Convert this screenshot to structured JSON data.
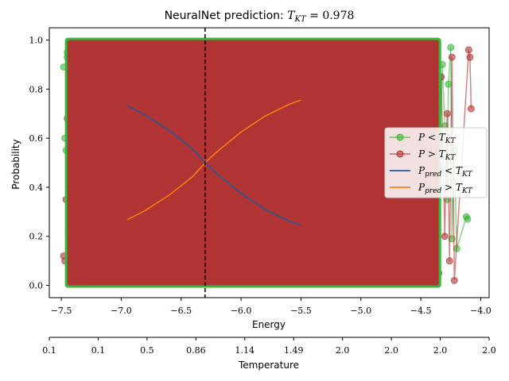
{
  "chart_data": {
    "type": "line",
    "title": "NeuralNet prediction: T_KT = 0.978",
    "title_prefix": "NeuralNet prediction: ",
    "title_symbol": "T",
    "title_sub": "KT",
    "title_value": " = 0.978",
    "xlabel": "Energy",
    "ylabel": "Probability",
    "xlim": [
      -7.6,
      -3.93
    ],
    "ylim": [
      -0.05,
      1.05
    ],
    "x_ticks": [
      -7.5,
      -7.0,
      -6.5,
      -6.0,
      -5.5,
      -5.0,
      -4.5,
      -4.0
    ],
    "x_tick_labels": [
      "−7.5",
      "−7.0",
      "−6.5",
      "−6.0",
      "−5.5",
      "−5.0",
      "−4.5",
      "−4.0"
    ],
    "y_ticks": [
      0.0,
      0.2,
      0.4,
      0.6,
      0.8,
      1.0
    ],
    "y_tick_labels": [
      "0.0",
      "0.2",
      "0.4",
      "0.6",
      "0.8",
      "1.0"
    ],
    "critical_energy": -6.3,
    "dense_band": {
      "x": [
        -7.45,
        -4.35
      ],
      "y": [
        0.0,
        1.0
      ]
    },
    "series": [
      {
        "name": "P < T_KT",
        "kind": "scatter-line",
        "color": "#3cb53c",
        "x": [
          -7.48,
          -7.46,
          -7.45,
          -7.44,
          -7.43,
          -7.47,
          -7.45,
          -4.52,
          -4.5,
          -4.48,
          -4.46,
          -4.44,
          -4.42,
          -4.4,
          -4.36,
          -4.34,
          -4.32,
          -4.3,
          -4.28,
          -4.27,
          -4.25,
          -4.24,
          -4.22,
          -4.2,
          -4.12,
          -4.11
        ],
        "y": [
          0.89,
          0.55,
          0.93,
          0.32,
          0.78,
          0.6,
          0.95,
          0.05,
          0.25,
          0.15,
          0.72,
          0.45,
          0.62,
          0.27,
          0.4,
          0.58,
          0.9,
          0.65,
          0.35,
          0.82,
          0.97,
          0.19,
          0.55,
          0.15,
          0.28,
          0.27
        ]
      },
      {
        "name": "P > T_KT",
        "kind": "scatter-line",
        "color": "#b03434",
        "x": [
          -7.48,
          -7.47,
          -7.46,
          -7.45,
          -7.44,
          -4.55,
          -4.52,
          -4.5,
          -4.48,
          -4.45,
          -4.42,
          -4.4,
          -4.38,
          -4.35,
          -4.33,
          -4.3,
          -4.28,
          -4.26,
          -4.24,
          -4.22,
          -4.1,
          -4.09,
          -4.08
        ],
        "y": [
          0.12,
          0.1,
          0.35,
          0.68,
          0.22,
          0.6,
          0.9,
          0.3,
          0.78,
          0.45,
          0.8,
          0.15,
          0.65,
          0.05,
          0.85,
          0.2,
          0.7,
          0.1,
          0.93,
          0.02,
          0.96,
          0.93,
          0.72
        ]
      },
      {
        "name": "P_pred < T_KT",
        "kind": "line",
        "color": "#1f5c9e",
        "x": [
          -6.95,
          -6.8,
          -6.6,
          -6.4,
          -6.3,
          -6.2,
          -6.0,
          -5.8,
          -5.6,
          -5.5
        ],
        "y": [
          0.733,
          0.695,
          0.632,
          0.555,
          0.5,
          0.455,
          0.375,
          0.31,
          0.262,
          0.245
        ]
      },
      {
        "name": "P_pred > T_KT",
        "kind": "line",
        "color": "#ff7f0e",
        "x": [
          -6.95,
          -6.8,
          -6.6,
          -6.4,
          -6.3,
          -6.2,
          -6.0,
          -5.8,
          -5.6,
          -5.5
        ],
        "y": [
          0.267,
          0.305,
          0.368,
          0.445,
          0.5,
          0.545,
          0.625,
          0.69,
          0.738,
          0.755
        ]
      }
    ],
    "legend": {
      "placement": "right",
      "entries": [
        {
          "sym": "P",
          "op": " < ",
          "tsym": "T",
          "tsub": "KT",
          "pred": false
        },
        {
          "sym": "P",
          "op": " > ",
          "tsym": "T",
          "tsub": "KT",
          "pred": false
        },
        {
          "sym": "P",
          "op": " < ",
          "tsym": "T",
          "tsub": "KT",
          "pred": true,
          "psub": "pred"
        },
        {
          "sym": "P",
          "op": " > ",
          "tsym": "T",
          "tsub": "KT",
          "pred": true,
          "psub": "pred"
        }
      ]
    },
    "secondary_axis": {
      "label": "Temperature",
      "tick_labels": [
        "0.1",
        "0.1",
        "0.5",
        "0.86",
        "1.14",
        "1.49",
        "2.0",
        "2.0",
        "2.0",
        "2.0"
      ]
    }
  }
}
